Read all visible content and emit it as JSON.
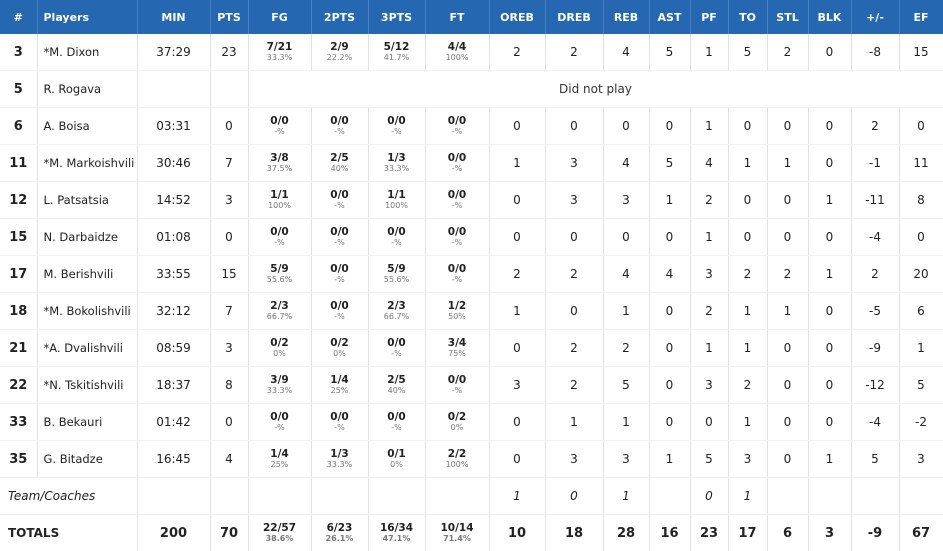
{
  "columns": [
    "#",
    "Players",
    "MIN",
    "PTS",
    "FG",
    "2PTS",
    "3PTS",
    "FT",
    "OREB",
    "DREB",
    "REB",
    "AST",
    "PF",
    "TO",
    "STL",
    "BLK",
    "+/-",
    "EF"
  ],
  "rows": [
    {
      "num": "3",
      "name": "*M. Dixon",
      "min": "37:29",
      "pts": "23",
      "fg": "7/21",
      "fg_pct": "33.3%",
      "p2": "2/9",
      "p2_pct": "22.2%",
      "p3": "5/12",
      "p3_pct": "41.7%",
      "ft": "4/4",
      "ft_pct": "100%",
      "oreb": "2",
      "dreb": "2",
      "reb": "4",
      "ast": "5",
      "pf": "1",
      "to": "5",
      "stl": "2",
      "blk": "0",
      "pm": "-8",
      "ef": "15"
    },
    {
      "num": "5",
      "name": "R. Rogava",
      "dnp": "Did not play"
    },
    {
      "num": "6",
      "name": "A. Boisa",
      "min": "03:31",
      "pts": "0",
      "fg": "0/0",
      "fg_pct": "-%",
      "p2": "0/0",
      "p2_pct": "-%",
      "p3": "0/0",
      "p3_pct": "-%",
      "ft": "0/0",
      "ft_pct": "-%",
      "oreb": "0",
      "dreb": "0",
      "reb": "0",
      "ast": "0",
      "pf": "1",
      "to": "0",
      "stl": "0",
      "blk": "0",
      "pm": "2",
      "ef": "0"
    },
    {
      "num": "11",
      "name": "*M. Markoishvili",
      "min": "30:46",
      "pts": "7",
      "fg": "3/8",
      "fg_pct": "37.5%",
      "p2": "2/5",
      "p2_pct": "40%",
      "p3": "1/3",
      "p3_pct": "33.3%",
      "ft": "0/0",
      "ft_pct": "-%",
      "oreb": "1",
      "dreb": "3",
      "reb": "4",
      "ast": "5",
      "pf": "4",
      "to": "1",
      "stl": "1",
      "blk": "0",
      "pm": "-1",
      "ef": "11"
    },
    {
      "num": "12",
      "name": "L. Patsatsia",
      "min": "14:52",
      "pts": "3",
      "fg": "1/1",
      "fg_pct": "100%",
      "p2": "0/0",
      "p2_pct": "-%",
      "p3": "1/1",
      "p3_pct": "100%",
      "ft": "0/0",
      "ft_pct": "-%",
      "oreb": "0",
      "dreb": "3",
      "reb": "3",
      "ast": "1",
      "pf": "2",
      "to": "0",
      "stl": "0",
      "blk": "1",
      "pm": "-11",
      "ef": "8"
    },
    {
      "num": "15",
      "name": "N. Darbaidze",
      "min": "01:08",
      "pts": "0",
      "fg": "0/0",
      "fg_pct": "-%",
      "p2": "0/0",
      "p2_pct": "-%",
      "p3": "0/0",
      "p3_pct": "-%",
      "ft": "0/0",
      "ft_pct": "-%",
      "oreb": "0",
      "dreb": "0",
      "reb": "0",
      "ast": "0",
      "pf": "1",
      "to": "0",
      "stl": "0",
      "blk": "0",
      "pm": "-4",
      "ef": "0"
    },
    {
      "num": "17",
      "name": "M. Berishvili",
      "min": "33:55",
      "pts": "15",
      "fg": "5/9",
      "fg_pct": "55.6%",
      "p2": "0/0",
      "p2_pct": "-%",
      "p3": "5/9",
      "p3_pct": "55.6%",
      "ft": "0/0",
      "ft_pct": "-%",
      "oreb": "2",
      "dreb": "2",
      "reb": "4",
      "ast": "4",
      "pf": "3",
      "to": "2",
      "stl": "2",
      "blk": "1",
      "pm": "2",
      "ef": "20"
    },
    {
      "num": "18",
      "name": "*M. Bokolishvili",
      "min": "32:12",
      "pts": "7",
      "fg": "2/3",
      "fg_pct": "66.7%",
      "p2": "0/0",
      "p2_pct": "-%",
      "p3": "2/3",
      "p3_pct": "66.7%",
      "ft": "1/2",
      "ft_pct": "50%",
      "oreb": "1",
      "dreb": "0",
      "reb": "1",
      "ast": "0",
      "pf": "2",
      "to": "1",
      "stl": "1",
      "blk": "0",
      "pm": "-5",
      "ef": "6"
    },
    {
      "num": "21",
      "name": "*A. Dvalishvili",
      "min": "08:59",
      "pts": "3",
      "fg": "0/2",
      "fg_pct": "0%",
      "p2": "0/2",
      "p2_pct": "0%",
      "p3": "0/0",
      "p3_pct": "-%",
      "ft": "3/4",
      "ft_pct": "75%",
      "oreb": "0",
      "dreb": "2",
      "reb": "2",
      "ast": "0",
      "pf": "1",
      "to": "1",
      "stl": "0",
      "blk": "0",
      "pm": "-9",
      "ef": "1"
    },
    {
      "num": "22",
      "name": "*N. Tskitishvili",
      "min": "18:37",
      "pts": "8",
      "fg": "3/9",
      "fg_pct": "33.3%",
      "p2": "1/4",
      "p2_pct": "25%",
      "p3": "2/5",
      "p3_pct": "40%",
      "ft": "0/0",
      "ft_pct": "-%",
      "oreb": "3",
      "dreb": "2",
      "reb": "5",
      "ast": "0",
      "pf": "3",
      "to": "2",
      "stl": "0",
      "blk": "0",
      "pm": "-12",
      "ef": "5"
    },
    {
      "num": "33",
      "name": "B. Bekauri",
      "min": "01:42",
      "pts": "0",
      "fg": "0/0",
      "fg_pct": "-%",
      "p2": "0/0",
      "p2_pct": "-%",
      "p3": "0/0",
      "p3_pct": "-%",
      "ft": "0/2",
      "ft_pct": "0%",
      "oreb": "0",
      "dreb": "1",
      "reb": "1",
      "ast": "0",
      "pf": "0",
      "to": "1",
      "stl": "0",
      "blk": "0",
      "pm": "-4",
      "ef": "-2"
    },
    {
      "num": "35",
      "name": "G. Bitadze",
      "min": "16:45",
      "pts": "4",
      "fg": "1/4",
      "fg_pct": "25%",
      "p2": "1/3",
      "p2_pct": "33.3%",
      "p3": "0/1",
      "p3_pct": "0%",
      "ft": "2/2",
      "ft_pct": "100%",
      "oreb": "0",
      "dreb": "3",
      "reb": "3",
      "ast": "1",
      "pf": "5",
      "to": "3",
      "stl": "0",
      "blk": "1",
      "pm": "5",
      "ef": "3"
    }
  ],
  "team": {
    "label": "Team/Coaches",
    "oreb": "1",
    "dreb": "0",
    "reb": "1",
    "ast": "",
    "pf": "0",
    "to": "1"
  },
  "totals": {
    "label": "TOTALS",
    "min": "200",
    "pts": "70",
    "fg": "22/57",
    "fg_pct": "38.6%",
    "p2": "6/23",
    "p2_pct": "26.1%",
    "p3": "16/34",
    "p3_pct": "47.1%",
    "ft": "10/14",
    "ft_pct": "71.4%",
    "oreb": "10",
    "dreb": "18",
    "reb": "28",
    "ast": "16",
    "pf": "23",
    "to": "17",
    "stl": "6",
    "blk": "3",
    "pm": "-9",
    "ef": "67"
  }
}
